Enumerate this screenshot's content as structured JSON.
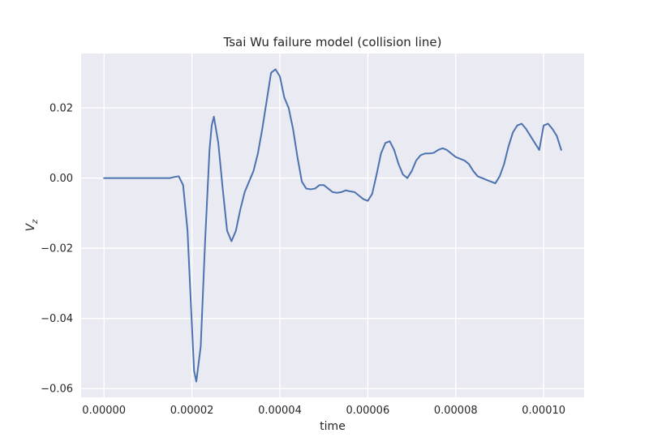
{
  "chart_data": {
    "type": "line",
    "title": "Tsai Wu failure model (collision line)",
    "xlabel": "time",
    "ylabel_main": "V",
    "ylabel_sub": "z",
    "xlim": [
      -5.2e-06,
      0.0001092
    ],
    "ylim": [
      -0.0625,
      0.0355
    ],
    "x_ticks": [
      0,
      2e-05,
      4e-05,
      6e-05,
      8e-05,
      0.0001
    ],
    "x_tick_labels": [
      "0.00000",
      "0.00002",
      "0.00004",
      "0.00006",
      "0.00008",
      "0.00010"
    ],
    "y_ticks": [
      -0.06,
      -0.04,
      -0.02,
      0.0,
      0.02
    ],
    "y_tick_labels": [
      "−0.06",
      "−0.04",
      "−0.02",
      "0.00",
      "0.02"
    ],
    "grid": true,
    "colors": {
      "background": "#EAEAF2",
      "grid": "#FFFFFF",
      "line": "#4C72B0"
    },
    "series": [
      {
        "x": [
          0,
          5e-06,
          1e-05,
          1.5e-05,
          1.6e-05,
          1.7e-05,
          1.8e-05,
          1.9e-05,
          2e-05,
          2.05e-05,
          2.1e-05,
          2.2e-05,
          2.3e-05,
          2.4e-05,
          2.45e-05,
          2.5e-05,
          2.6e-05,
          2.7e-05,
          2.8e-05,
          2.9e-05,
          3e-05,
          3.1e-05,
          3.2e-05,
          3.3e-05,
          3.4e-05,
          3.5e-05,
          3.6e-05,
          3.7e-05,
          3.8e-05,
          3.9e-05,
          4e-05,
          4.1e-05,
          4.2e-05,
          4.3e-05,
          4.4e-05,
          4.5e-05,
          4.6e-05,
          4.7e-05,
          4.8e-05,
          4.9e-05,
          5e-05,
          5.1e-05,
          5.2e-05,
          5.3e-05,
          5.4e-05,
          5.5e-05,
          5.6e-05,
          5.7e-05,
          5.8e-05,
          5.9e-05,
          6e-05,
          6.1e-05,
          6.2e-05,
          6.3e-05,
          6.4e-05,
          6.5e-05,
          6.6e-05,
          6.7e-05,
          6.8e-05,
          6.9e-05,
          7e-05,
          7.1e-05,
          7.2e-05,
          7.3e-05,
          7.4e-05,
          7.5e-05,
          7.6e-05,
          7.7e-05,
          7.8e-05,
          7.9e-05,
          8e-05,
          8.1e-05,
          8.2e-05,
          8.3e-05,
          8.4e-05,
          8.5e-05,
          8.6e-05,
          8.7e-05,
          8.8e-05,
          8.9e-05,
          9e-05,
          9.1e-05,
          9.2e-05,
          9.3e-05,
          9.4e-05,
          9.5e-05,
          9.6e-05,
          9.7e-05,
          9.8e-05,
          9.9e-05,
          0.0001,
          0.000101,
          0.000102,
          0.000103,
          0.0001035,
          0.000104
        ],
        "y": [
          0,
          0,
          0,
          0,
          0.0003,
          0.0005,
          -0.002,
          -0.015,
          -0.042,
          -0.055,
          -0.058,
          -0.048,
          -0.018,
          0.008,
          0.015,
          0.0175,
          0.01,
          -0.003,
          -0.015,
          -0.018,
          -0.015,
          -0.009,
          -0.004,
          -0.001,
          0.002,
          0.007,
          0.014,
          0.022,
          0.03,
          0.031,
          0.029,
          0.023,
          0.02,
          0.014,
          0.006,
          -0.001,
          -0.003,
          -0.0032,
          -0.003,
          -0.002,
          -0.002,
          -0.003,
          -0.004,
          -0.0042,
          -0.004,
          -0.0035,
          -0.0038,
          -0.004,
          -0.005,
          -0.006,
          -0.0065,
          -0.0045,
          0.001,
          0.007,
          0.01,
          0.0105,
          0.008,
          0.004,
          0.001,
          0.0,
          0.002,
          0.005,
          0.0065,
          0.007,
          0.007,
          0.0072,
          0.008,
          0.0085,
          0.008,
          0.007,
          0.006,
          0.0055,
          0.005,
          0.004,
          0.002,
          0.0005,
          0,
          -0.0005,
          -0.001,
          -0.0015,
          0.0005,
          0.004,
          0.009,
          0.013,
          0.015,
          0.0155,
          0.014,
          0.012,
          0.01,
          0.008,
          0.015,
          0.0155,
          0.014,
          0.012,
          0.01,
          0.008
        ]
      }
    ]
  }
}
